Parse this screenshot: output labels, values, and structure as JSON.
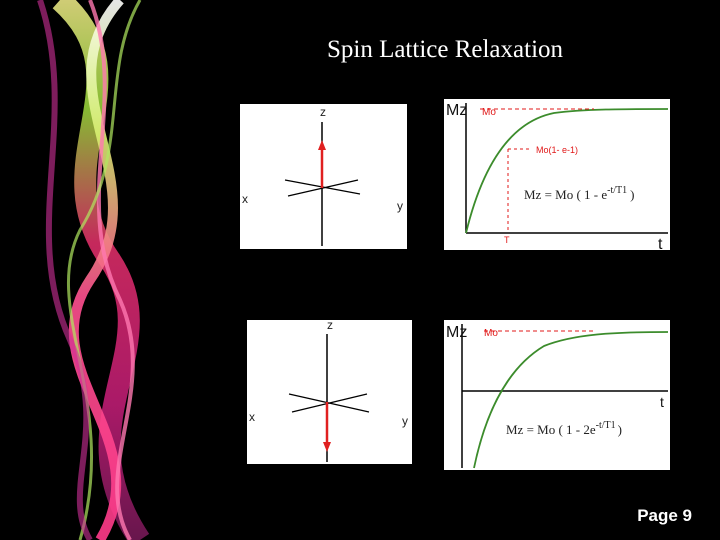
{
  "slide": {
    "title": "Spin Lattice Relaxation",
    "page_label": "Page 9"
  },
  "axes_diagram_top": {
    "z_label": "z",
    "x_label": "x",
    "y_label": "y",
    "vector_direction": "up"
  },
  "axes_diagram_bottom": {
    "z_label": "z",
    "x_label": "x",
    "y_label": "y",
    "vector_direction": "down"
  },
  "graph_top": {
    "y_axis_label": "Mz",
    "x_axis_label": "t",
    "m0_label": "Mo",
    "marker_label": "Mo(1- e-1)",
    "t1_tick_label": "T",
    "equation_left": "Mz = Mo ( 1 - e",
    "equation_exponent": "-t/T1",
    "equation_right": ")"
  },
  "graph_bottom": {
    "y_axis_label": "Mz",
    "x_axis_label": "t",
    "m0_label": "Mo",
    "equation_left": "Mz = Mo ( 1 - 2e",
    "equation_exponent": "-t/T1",
    "equation_right": ")"
  },
  "colors": {
    "background": "#000000",
    "curve": "#3c8c2c",
    "annotation_red": "#e01818",
    "vector_red": "#e02020"
  }
}
